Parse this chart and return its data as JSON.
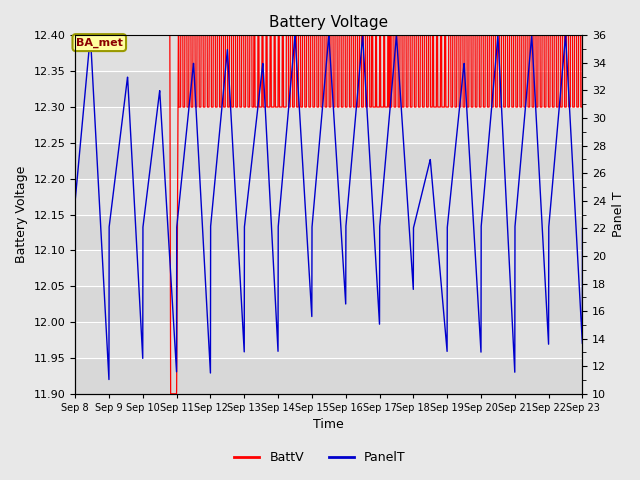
{
  "title": "Battery Voltage",
  "xlabel": "Time",
  "ylabel_left": "Battery Voltage",
  "ylabel_right": "Panel T",
  "ylim_left": [
    11.9,
    12.4
  ],
  "ylim_right": [
    10,
    36
  ],
  "x_tick_labels": [
    "Sep 8",
    "Sep 9",
    "Sep 10",
    "Sep 11",
    "Sep 12",
    "Sep 13",
    "Sep 14",
    "Sep 15",
    "Sep 16",
    "Sep 17",
    "Sep 18",
    "Sep 19",
    "Sep 20",
    "Sep 21",
    "Sep 22",
    "Sep 23"
  ],
  "annotation_text": "BA_met",
  "bg_color": "#e8e8e8",
  "plot_bg_color_dark": "#d0d0d0",
  "plot_bg_color_light": "#e0e0e0",
  "grid_color": "#ffffff",
  "red_color": "#ff0000",
  "blue_color": "#0000cd",
  "right_tick_minor": [
    11,
    13,
    15,
    17,
    19,
    21,
    23,
    25,
    27,
    29,
    31,
    33,
    35
  ],
  "right_tick_major": [
    10,
    12,
    14,
    16,
    18,
    20,
    22,
    24,
    26,
    28,
    30,
    32,
    34,
    36
  ]
}
